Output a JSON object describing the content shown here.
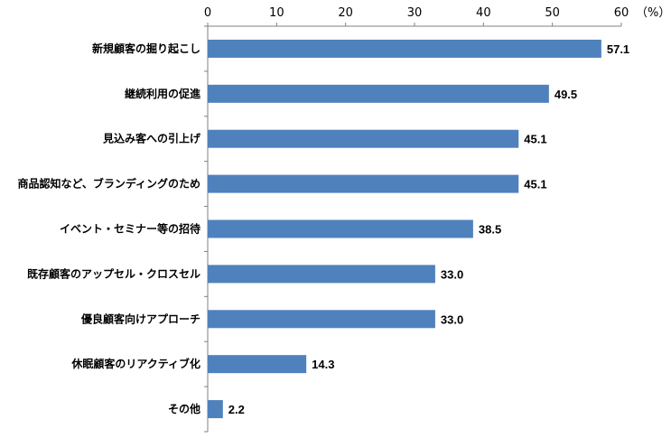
{
  "chart_data": {
    "type": "bar",
    "orientation": "horizontal",
    "categories": [
      "新規顧客の掘り起こし",
      "継続利用の促進",
      "見込み客への引上げ",
      "商品認知など、ブランディングのため",
      "イベント・セミナー等の招待",
      "既存顧客のアップセル・クロスセル",
      "優良顧客向けアプローチ",
      "休眠顧客のリアクティブ化",
      "その他"
    ],
    "values": [
      57.1,
      49.5,
      45.1,
      45.1,
      38.5,
      33.0,
      33.0,
      14.3,
      2.2
    ],
    "value_labels": [
      "57.1",
      "49.5",
      "45.1",
      "45.1",
      "38.5",
      "33.0",
      "33.0",
      "14.3",
      "2.2"
    ],
    "xlim": [
      0,
      60
    ],
    "ticks": [
      "0",
      "10",
      "20",
      "30",
      "40",
      "50",
      "60"
    ],
    "unit": "（%）",
    "axis_position": "top",
    "grid": false,
    "bar_color": "#4f81bd",
    "title": "",
    "xlabel": "",
    "ylabel": ""
  }
}
